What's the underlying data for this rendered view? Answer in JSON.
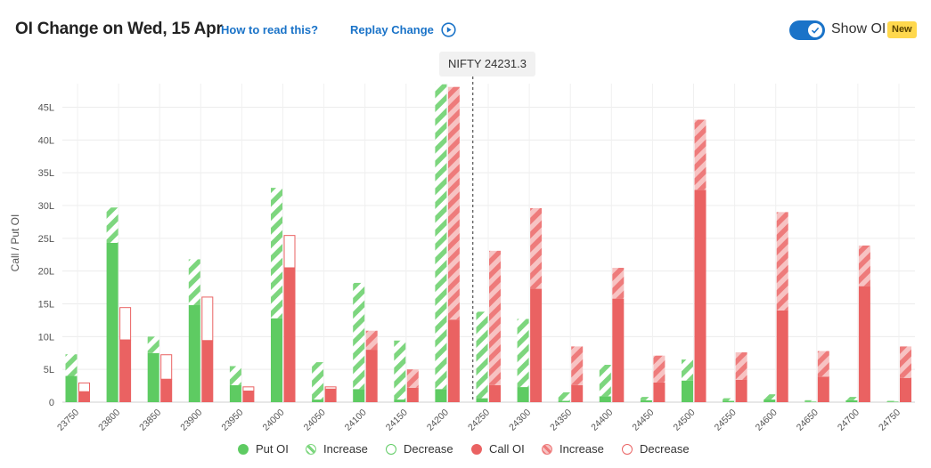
{
  "header": {
    "title": "OI Change on Wed, 15 Apr",
    "how_label": "How to read this?",
    "replay_label": "Replay Change",
    "show_oi_label": "Show OI",
    "new_badge": "New",
    "toggle_on": true
  },
  "spot_label": "NIFTY 24231.3",
  "colors": {
    "put": "#5ecb62",
    "put_light": "#b3e7b1",
    "call": "#ea6262",
    "call_light": "#f3a7a7",
    "accent": "#1a73c8",
    "badge": "#ffd84d"
  },
  "legend": {
    "put_oi": "Put OI",
    "put_increase": "Increase",
    "put_decrease": "Decrease",
    "call_oi": "Call OI",
    "call_increase": "Increase",
    "call_decrease": "Decrease"
  },
  "chart_data": {
    "type": "bar",
    "ylabel": "Call / Put OI",
    "ylim": [
      0,
      48
    ],
    "yticks": [
      0,
      5,
      10,
      15,
      20,
      25,
      30,
      35,
      40,
      45
    ],
    "ytick_labels": [
      "0",
      "5L",
      "10L",
      "15L",
      "20L",
      "25L",
      "30L",
      "35L",
      "40L",
      "45L"
    ],
    "spot": 24231.3,
    "categories": [
      "23750",
      "23800",
      "23850",
      "23900",
      "23950",
      "24000",
      "24050",
      "24100",
      "24150",
      "24200",
      "24250",
      "24300",
      "24350",
      "24400",
      "24450",
      "24500",
      "24550",
      "24600",
      "24650",
      "24700",
      "24750"
    ],
    "series": [
      {
        "name": "Put OI",
        "prev": [
          4.0,
          24.3,
          7.5,
          14.8,
          2.6,
          12.8,
          0.4,
          2.0,
          0.4,
          2.0,
          0.6,
          2.3,
          0.2,
          0.9,
          0.3,
          3.3,
          0.2,
          0.4,
          0.1,
          0.3,
          0.1
        ],
        "current": [
          7.3,
          29.7,
          10.0,
          21.8,
          5.5,
          32.7,
          6.1,
          18.2,
          9.4,
          48.5,
          13.8,
          12.7,
          1.5,
          5.7,
          0.8,
          6.5,
          0.6,
          1.2,
          0.3,
          0.8,
          0.2
        ]
      },
      {
        "name": "Call OI",
        "prev": [
          3.0,
          14.5,
          7.3,
          16.1,
          2.4,
          25.5,
          2.4,
          8.0,
          2.2,
          12.6,
          2.6,
          17.3,
          2.6,
          15.8,
          3.0,
          32.4,
          3.4,
          14.0,
          3.9,
          17.7,
          3.7
        ],
        "current": [
          1.6,
          9.5,
          3.5,
          9.4,
          1.7,
          20.5,
          2.0,
          10.9,
          5.0,
          48.1,
          23.1,
          29.6,
          8.5,
          20.5,
          7.1,
          43.1,
          7.6,
          29.0,
          7.8,
          23.9,
          8.5
        ]
      }
    ]
  }
}
